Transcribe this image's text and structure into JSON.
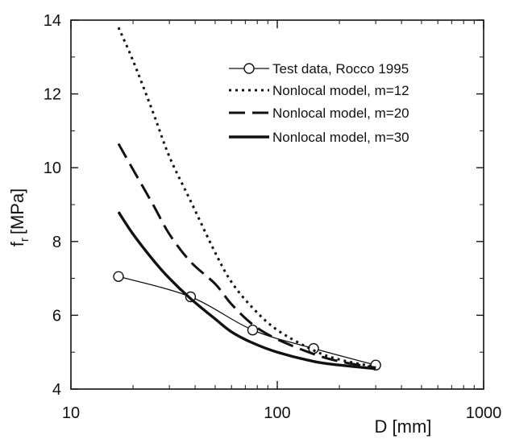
{
  "chart_data": {
    "type": "line",
    "xlabel": "D [mm]",
    "ylabel_main": "f",
    "ylabel_sub": "r",
    "ylabel_unit": "[MPa]",
    "x_scale": "log",
    "xlim": [
      10,
      1000
    ],
    "ylim": [
      4,
      14
    ],
    "x_ticks": [
      10,
      100,
      1000
    ],
    "x_tick_labels": [
      "10",
      "100",
      "1000"
    ],
    "y_ticks": [
      4,
      6,
      8,
      10,
      12,
      14
    ],
    "y_tick_labels": [
      "4",
      "6",
      "8",
      "10",
      "12",
      "14"
    ],
    "grid": false,
    "legend_position": "top-right",
    "series": [
      {
        "name": "Test data, Rocco 1995",
        "style": "solid-thin-circle-markers",
        "x": [
          17,
          38,
          76,
          150,
          300
        ],
        "y": [
          7.05,
          6.5,
          5.6,
          5.1,
          4.65
        ]
      },
      {
        "name": "Nonlocal model, m=12",
        "style": "dotted",
        "x": [
          17,
          20,
          25,
          30,
          38,
          50,
          60,
          76,
          100,
          150,
          200,
          300
        ],
        "y": [
          13.8,
          12.9,
          11.5,
          10.3,
          9.1,
          7.7,
          6.9,
          6.2,
          5.6,
          5.05,
          4.8,
          4.6
        ]
      },
      {
        "name": "Nonlocal model, m=20",
        "style": "dashed",
        "x": [
          17,
          20,
          25,
          30,
          38,
          50,
          60,
          76,
          100,
          150,
          200,
          300
        ],
        "y": [
          10.65,
          9.95,
          9.0,
          8.2,
          7.45,
          6.85,
          6.3,
          5.75,
          5.35,
          4.95,
          4.75,
          4.58
        ]
      },
      {
        "name": "Nonlocal model, m=30",
        "style": "solid-thick",
        "x": [
          17,
          20,
          25,
          30,
          38,
          50,
          60,
          76,
          100,
          150,
          200,
          300
        ],
        "y": [
          8.8,
          8.2,
          7.5,
          7.0,
          6.45,
          5.9,
          5.55,
          5.25,
          5.0,
          4.75,
          4.65,
          4.55
        ]
      }
    ]
  }
}
